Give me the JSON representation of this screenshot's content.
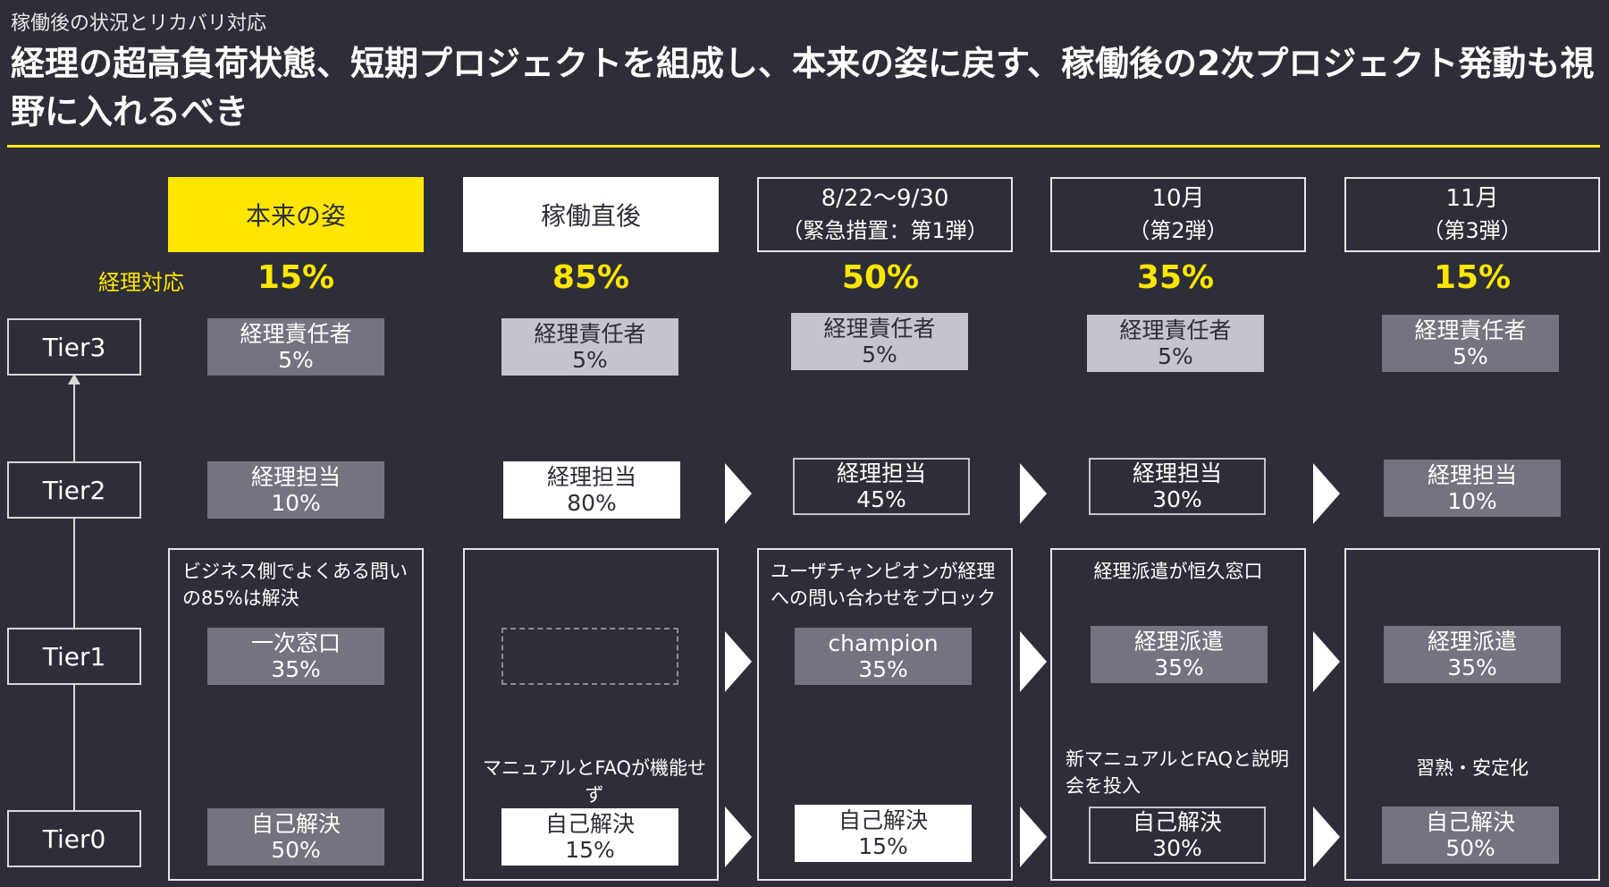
{
  "header": {
    "subtitle": "稼働後の状況とリカバリ対応",
    "title": "経理の超高負荷状態、短期プロジェクトを組成し、本来の姿に戻す、稼働後の2次プロジェクト発動も視野に入れるべき"
  },
  "accent_color": "#ffe600",
  "background_color": "#2e2e38",
  "tiers": [
    "Tier3",
    "Tier2",
    "Tier1",
    "Tier0"
  ],
  "row_label": "経理対応",
  "columns": [
    {
      "header": "本来の姿",
      "header_sub": "",
      "percent": "15%",
      "tier3": {
        "label": "経理責任者",
        "value": "5%"
      },
      "tier2": {
        "label": "経理担当",
        "value": "10%"
      },
      "note_top": "ビジネス側でよくある問いの85%は解決",
      "tier1": {
        "label": "一次窓口",
        "value": "35%"
      },
      "note_bottom": "",
      "tier0": {
        "label": "自己解決",
        "value": "50%"
      }
    },
    {
      "header": "稼働直後",
      "header_sub": "",
      "percent": "85%",
      "tier3": {
        "label": "経理責任者",
        "value": "5%"
      },
      "tier2": {
        "label": "経理担当",
        "value": "80%"
      },
      "note_top": "",
      "tier1": {
        "label": "",
        "value": ""
      },
      "note_bottom": "マニュアルとFAQが機能せず",
      "tier0": {
        "label": "自己解決",
        "value": "15%"
      }
    },
    {
      "header": "8/22～9/30",
      "header_sub": "（緊急措置：第1弾）",
      "percent": "50%",
      "tier3": {
        "label": "経理責任者",
        "value": "5%"
      },
      "tier2": {
        "label": "経理担当",
        "value": "45%"
      },
      "note_top": "ユーザチャンピオンが経理への問い合わせをブロック",
      "tier1": {
        "label": "champion",
        "value": "35%"
      },
      "note_bottom": "",
      "tier0": {
        "label": "自己解決",
        "value": "15%"
      }
    },
    {
      "header": "10月",
      "header_sub": "（第2弾）",
      "percent": "35%",
      "tier3": {
        "label": "経理責任者",
        "value": "5%"
      },
      "tier2": {
        "label": "経理担当",
        "value": "30%"
      },
      "note_top": "経理派遣が恒久窓口",
      "tier1": {
        "label": "経理派遣",
        "value": "35%"
      },
      "note_bottom": "新マニュアルとFAQと説明会を投入",
      "tier0": {
        "label": "自己解決",
        "value": "30%"
      }
    },
    {
      "header": "11月",
      "header_sub": "（第3弾）",
      "percent": "15%",
      "tier3": {
        "label": "経理責任者",
        "value": "5%"
      },
      "tier2": {
        "label": "経理担当",
        "value": "10%"
      },
      "note_top": "",
      "tier1": {
        "label": "経理派遣",
        "value": "35%"
      },
      "note_bottom": "習熟・安定化",
      "tier0": {
        "label": "自己解決",
        "value": "50%"
      }
    }
  ]
}
